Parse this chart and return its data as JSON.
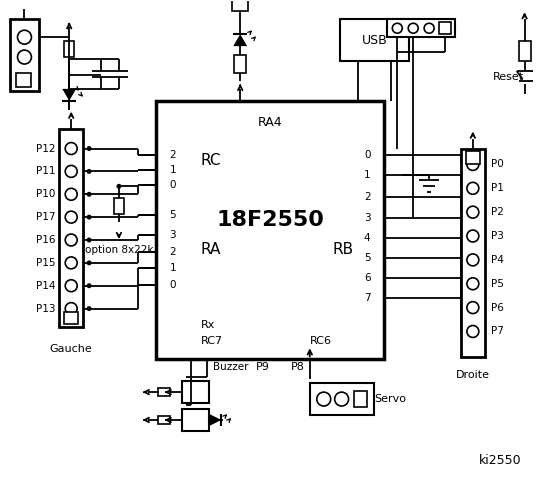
{
  "bg_color": "#ffffff",
  "lc": "#000000",
  "chip_label": "18F2550",
  "chip_sublabel": "RA4",
  "rc_label": "RC",
  "ra_label": "RA",
  "rb_label": "RB",
  "left_labels": [
    "P12",
    "P11",
    "P10",
    "P17",
    "P16",
    "P15",
    "P14",
    "P13"
  ],
  "right_labels": [
    "P0",
    "P1",
    "P2",
    "P3",
    "P4",
    "P5",
    "P6",
    "P7"
  ],
  "rc_pin_labels": [
    "2",
    "1",
    "0"
  ],
  "ra_pin_labels": [
    "5",
    "3",
    "2",
    "1",
    "0"
  ],
  "rb_pin_labels": [
    "0",
    "1",
    "2",
    "3",
    "4",
    "5",
    "6",
    "7"
  ],
  "usb_label": "USB",
  "reset_label": "Reset",
  "gauche_label": "Gauche",
  "droite_label": "Droite",
  "buzzer_label": "Buzzer",
  "p9_label": "P9",
  "p8_label": "P8",
  "servo_label": "Servo",
  "option_label": "option 8x22k",
  "ki_label": "ki2550",
  "rx_label": "Rx",
  "rc7_label": "RC7",
  "rc6_label": "RC6"
}
